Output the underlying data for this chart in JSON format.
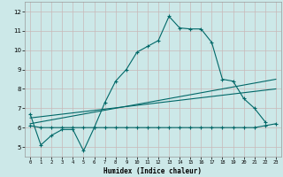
{
  "xlabel": "Humidex (Indice chaleur)",
  "bg_color": "#cce8e8",
  "line_color": "#006868",
  "grid_color": "#c8b8b8",
  "xlim": [
    -0.5,
    23.5
  ],
  "ylim": [
    4.5,
    12.5
  ],
  "xticks": [
    0,
    1,
    2,
    3,
    4,
    5,
    6,
    7,
    8,
    9,
    10,
    11,
    12,
    13,
    14,
    15,
    16,
    17,
    18,
    19,
    20,
    21,
    22,
    23
  ],
  "yticks": [
    5,
    6,
    7,
    8,
    9,
    10,
    11,
    12
  ],
  "line1_x": [
    0,
    1,
    2,
    3,
    4,
    5,
    6,
    7,
    8,
    9,
    10,
    11,
    12,
    13,
    14,
    15,
    16,
    17,
    18,
    19,
    20,
    21,
    22
  ],
  "line1_y": [
    6.7,
    5.1,
    5.6,
    5.9,
    5.9,
    4.8,
    6.0,
    7.3,
    8.4,
    9.0,
    9.9,
    10.2,
    10.5,
    11.75,
    11.15,
    11.1,
    11.1,
    10.4,
    8.5,
    8.4,
    7.5,
    7.0,
    6.3
  ],
  "line2_x": [
    0,
    1,
    2,
    3,
    4,
    5,
    6,
    7,
    8,
    9,
    10,
    11,
    12,
    13,
    14,
    15,
    16,
    17,
    18,
    19,
    20,
    21,
    22,
    23
  ],
  "line2_y": [
    6.1,
    6.0,
    6.0,
    6.0,
    6.0,
    6.0,
    6.0,
    6.0,
    6.0,
    6.0,
    6.0,
    6.0,
    6.0,
    6.0,
    6.0,
    6.0,
    6.0,
    6.0,
    6.0,
    6.0,
    6.0,
    6.0,
    6.1,
    6.2
  ],
  "line3_x": [
    0,
    23
  ],
  "line3_y": [
    6.2,
    8.5
  ],
  "line4_x": [
    0,
    23
  ],
  "line4_y": [
    6.5,
    8.0
  ]
}
